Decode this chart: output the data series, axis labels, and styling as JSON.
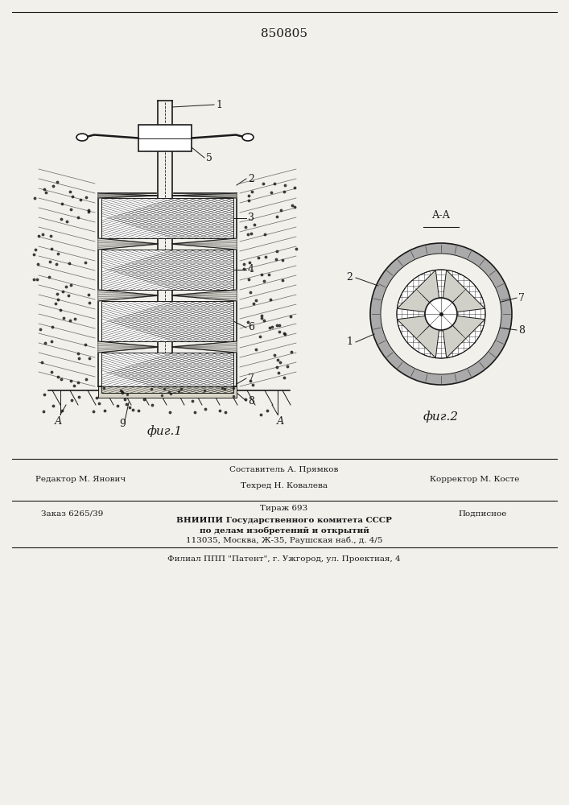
{
  "patent_number": "850805",
  "fig1_label": "фиг.1",
  "fig2_label": "фиг.2",
  "bg_color": "#f2f0eb",
  "line_color": "#1a1a1a",
  "editor_line": "Редактор М. Янович",
  "composer_line1": "Составитель А. Прямков",
  "composer_line2": "Техред Н. Ковалева",
  "corrector_line": "Корректор М. Косте",
  "order_line": "Заказ 6265/39",
  "circulation_line": "Тираж 693",
  "subscription_line": "Подписное",
  "org_line1": "ВНИИПИ Государственного комитета СССР",
  "org_line2": "по делам изобретений и открытий",
  "org_line3": "113035, Москва, Ж-35, Раушская наб., д. 4/5",
  "branch_line": "Филиал ППП \"Патент\", г. Ужгород, ул. Проектная, 4"
}
